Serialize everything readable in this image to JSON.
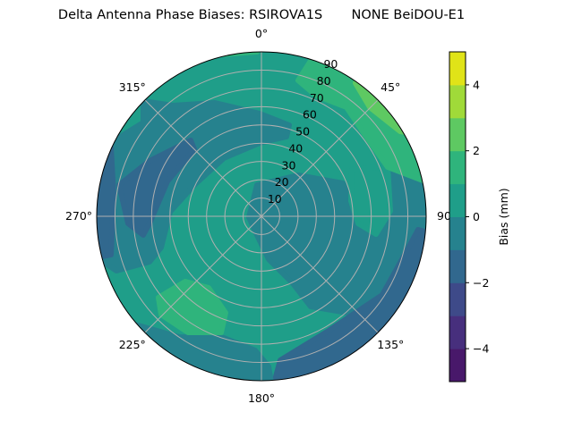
{
  "chart_data": {
    "type": "polar-contour",
    "title": "Delta Antenna Phase Biases: RSIROVA1S       NONE BeiDOU-E1",
    "angular_ticks": [
      {
        "angle": 0,
        "label": "0°"
      },
      {
        "angle": 45,
        "label": "45°"
      },
      {
        "angle": 90,
        "label": "90"
      },
      {
        "angle": 135,
        "label": "135°"
      },
      {
        "angle": 180,
        "label": "180°"
      },
      {
        "angle": 225,
        "label": "225°"
      },
      {
        "angle": 270,
        "label": "270°"
      },
      {
        "angle": 315,
        "label": "315°"
      }
    ],
    "radial_ticks": [
      {
        "value": 10,
        "label": "10"
      },
      {
        "value": 20,
        "label": "20"
      },
      {
        "value": 30,
        "label": "30"
      },
      {
        "value": 40,
        "label": "40"
      },
      {
        "value": 50,
        "label": "50"
      },
      {
        "value": 60,
        "label": "60"
      },
      {
        "value": 70,
        "label": "70"
      },
      {
        "value": 80,
        "label": "80"
      },
      {
        "value": 90,
        "label": "90"
      }
    ],
    "radial_range": [
      0,
      90
    ],
    "theta_direction": "clockwise",
    "theta_zero": "top",
    "grid": true,
    "colormap": "viridis",
    "levels": [
      -5,
      -4,
      -3,
      -2,
      -1,
      0,
      1,
      2,
      3,
      4,
      5
    ],
    "level_colors": [
      "#48186a",
      "#472f7d",
      "#3e4a89",
      "#31688e",
      "#26828e",
      "#1f9e89",
      "#2fb47c",
      "#5ec962",
      "#a0da39",
      "#e0e318"
    ],
    "colorbar": {
      "label": "Bias (mm)",
      "range": [
        -5,
        5
      ],
      "ticks": [
        {
          "value": 4,
          "label": "4"
        },
        {
          "value": 2,
          "label": "2"
        },
        {
          "value": 0,
          "label": "0"
        },
        {
          "value": -2,
          "label": "−2"
        },
        {
          "value": -4,
          "label": "−4"
        }
      ]
    },
    "regions_description_levels": {
      "background": 0,
      "center_east_and_west_bands": -1,
      "northwest_and_southeast_patches": -2,
      "northeast_rim_and_southwest_patch": 1,
      "northeast_rim_peak": 2
    }
  }
}
